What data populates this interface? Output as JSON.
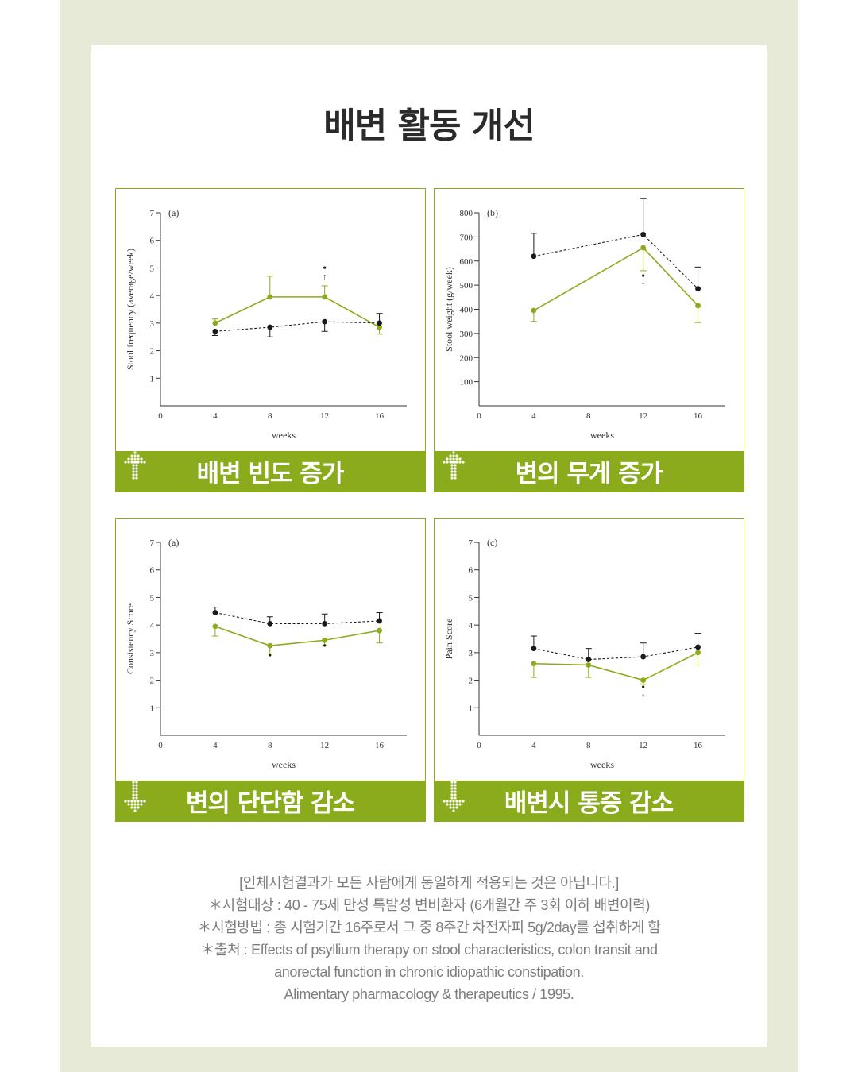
{
  "title": "배변 활동 개선",
  "colors": {
    "accent": "#8aac1c",
    "treatment": "#8aac1c",
    "control": "#1a1a1a",
    "frame": "#e7ead7"
  },
  "chart_data": [
    {
      "type": "line",
      "id": "freq",
      "panel_letter": "(a)",
      "xlabel": "weeks",
      "ylabel": "Stool frequency (average/week)",
      "x_ticks": [
        0,
        4,
        8,
        12,
        16
      ],
      "y_ticks": [
        1,
        2,
        3,
        4,
        5,
        6,
        7
      ],
      "ylim": [
        0,
        7
      ],
      "xlim": [
        0,
        18
      ],
      "series": [
        {
          "role": "treatment",
          "style": "solid",
          "x": [
            4,
            8,
            12,
            16
          ],
          "values": [
            3.0,
            3.95,
            3.95,
            2.85
          ],
          "err_up": [
            0.15,
            0.75,
            0.4,
            0
          ],
          "err_down": [
            0,
            0,
            0,
            0.25
          ]
        },
        {
          "role": "control",
          "style": "dashed",
          "x": [
            4,
            8,
            12,
            16
          ],
          "values": [
            2.7,
            2.85,
            3.05,
            3.0
          ],
          "err_up": [
            0,
            0,
            0,
            0.35
          ],
          "err_down": [
            0.15,
            0.35,
            0.35,
            0
          ]
        }
      ],
      "annotations": [
        {
          "x": 12,
          "y": 4.75,
          "text": "↑",
          "dot": true
        }
      ],
      "banner": "배변 빈도 증가",
      "banner_arrow": "up"
    },
    {
      "type": "line",
      "id": "weight",
      "panel_letter": "(b)",
      "xlabel": "weeks",
      "ylabel": "Stool weight (g/week)",
      "x_ticks": [
        0,
        4,
        8,
        12,
        16
      ],
      "y_ticks": [
        100,
        200,
        300,
        400,
        500,
        600,
        700,
        800
      ],
      "ylim": [
        0,
        800
      ],
      "xlim": [
        0,
        18
      ],
      "series": [
        {
          "role": "treatment",
          "style": "solid",
          "x": [
            4,
            12,
            16
          ],
          "values": [
            395,
            655,
            415
          ],
          "err_up": [
            0,
            0,
            0
          ],
          "err_down": [
            45,
            95,
            70
          ]
        },
        {
          "role": "control",
          "style": "dashed",
          "x": [
            4,
            12,
            16
          ],
          "values": [
            620,
            710,
            485
          ],
          "err_up": [
            95,
            150,
            90
          ],
          "err_down": [
            0,
            0,
            0
          ]
        }
      ],
      "annotations": [
        {
          "x": 12,
          "y": 510,
          "text": "↑",
          "dot": true
        }
      ],
      "banner": "변의 무게 증가",
      "banner_arrow": "up"
    },
    {
      "type": "line",
      "id": "consistency",
      "panel_letter": "(a)",
      "xlabel": "weeks",
      "ylabel": "Consistency Score",
      "x_ticks": [
        0,
        4,
        8,
        12,
        16
      ],
      "y_ticks": [
        1,
        2,
        3,
        4,
        5,
        6,
        7
      ],
      "ylim": [
        0,
        7
      ],
      "xlim": [
        0,
        18
      ],
      "series": [
        {
          "role": "treatment",
          "style": "solid",
          "x": [
            4,
            8,
            12,
            16
          ],
          "values": [
            3.95,
            3.25,
            3.45,
            3.8
          ],
          "err_up": [
            0,
            0,
            0,
            0
          ],
          "err_down": [
            0.35,
            0.3,
            0.2,
            0.45
          ]
        },
        {
          "role": "control",
          "style": "dashed",
          "x": [
            4,
            8,
            12,
            16
          ],
          "values": [
            4.45,
            4.05,
            4.05,
            4.15
          ],
          "err_up": [
            0.2,
            0.25,
            0.35,
            0.3
          ],
          "err_down": [
            0,
            0,
            0,
            0
          ]
        }
      ],
      "annotations": [
        {
          "x": 8,
          "y": 2.65,
          "text": "",
          "dot": true
        },
        {
          "x": 12,
          "y": 3.0,
          "text": "",
          "dot": true
        }
      ],
      "banner": "변의 단단함 감소",
      "banner_arrow": "down"
    },
    {
      "type": "line",
      "id": "pain",
      "panel_letter": "(c)",
      "xlabel": "weeks",
      "ylabel": "Pain Score",
      "x_ticks": [
        0,
        4,
        8,
        12,
        16
      ],
      "y_ticks": [
        1,
        2,
        3,
        4,
        5,
        6,
        7
      ],
      "ylim": [
        0,
        7
      ],
      "xlim": [
        0,
        18
      ],
      "series": [
        {
          "role": "treatment",
          "style": "solid",
          "x": [
            4,
            8,
            12,
            16
          ],
          "values": [
            2.6,
            2.55,
            2.0,
            3.0
          ],
          "err_up": [
            0,
            0,
            0,
            0
          ],
          "err_down": [
            0.5,
            0.45,
            0.15,
            0.45
          ]
        },
        {
          "role": "control",
          "style": "dashed",
          "x": [
            4,
            8,
            12,
            16
          ],
          "values": [
            3.15,
            2.75,
            2.85,
            3.2
          ],
          "err_up": [
            0.45,
            0.4,
            0.5,
            0.5
          ],
          "err_down": [
            0,
            0,
            0,
            0
          ]
        }
      ],
      "annotations": [
        {
          "x": 12,
          "y": 1.5,
          "text": "↑",
          "dot": true
        }
      ],
      "banner": "배변시 통증 감소",
      "banner_arrow": "down"
    }
  ],
  "notes": [
    "[인체시험결과가 모든 사람에게 동일하게 적용되는 것은 아닙니다.]",
    "＊시험대상 : 40 - 75세 만성 특발성 변비환자 (6개월간 주 3회 이하 배변이력)",
    "＊시험방법 : 총 시험기간 16주로서 그 중 8주간 차전자피 5g/2day를 섭취하게 함",
    "＊출처 : Effects of psyllium therapy on stool characteristics, colon transit and",
    "anorectal function in chronic idiopathic constipation.",
    "Alimentary pharmacology & therapeutics / 1995."
  ]
}
